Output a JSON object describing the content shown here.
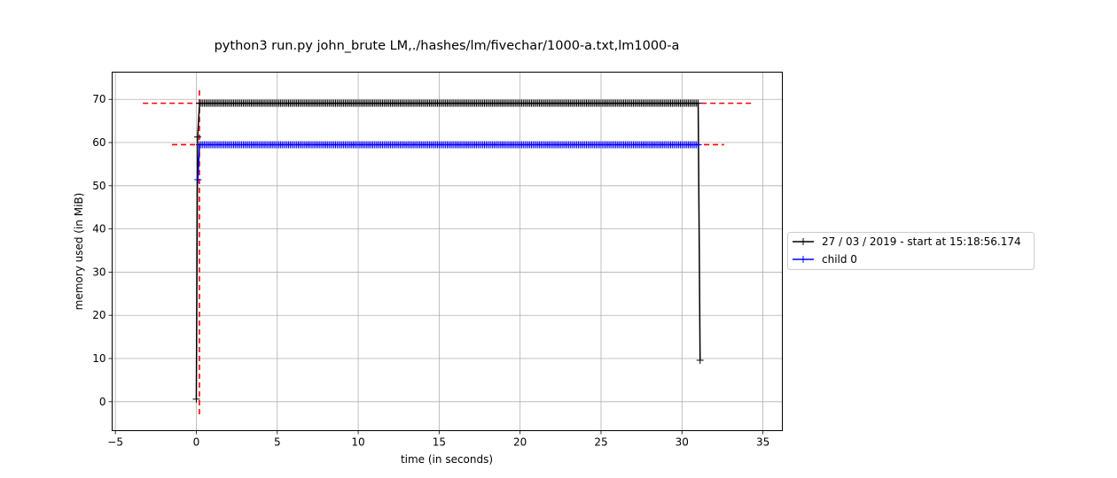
{
  "chart_data": {
    "type": "line",
    "title": "python3 run.py john_brute LM,./hashes/lm/fivechar/1000-a.txt,lm1000-a",
    "xlabel": "time (in seconds)",
    "ylabel": "memory used (in MiB)",
    "xlim": [
      -5.2,
      36.2
    ],
    "ylim": [
      -6.7,
      76.3
    ],
    "xticks": [
      -5,
      0,
      5,
      10,
      15,
      20,
      25,
      30,
      35
    ],
    "yticks": [
      0,
      10,
      20,
      30,
      40,
      50,
      60,
      70
    ],
    "grid": true,
    "legend_position": "right-outside",
    "series": [
      {
        "name": "27 / 03 / 2019 - start at 15:18:56.174",
        "color": "#000000",
        "marker": "+",
        "start": [
          [
            0.0,
            0.6
          ],
          [
            0.08,
            61.3
          ]
        ],
        "plateau": {
          "x_from": 0.2,
          "x_to": 31.0,
          "step": 0.1,
          "y": 69.1
        },
        "end": [
          [
            31.12,
            9.6
          ]
        ],
        "max_line": {
          "y": 69.1,
          "x_from": -3.3,
          "x_to": 34.4
        }
      },
      {
        "name": "child 0",
        "color": "#0000ff",
        "marker": "+",
        "start": [
          [
            0.1,
            51.4
          ]
        ],
        "plateau": {
          "x_from": 0.2,
          "x_to": 31.0,
          "step": 0.1,
          "y": 59.5
        },
        "end": [],
        "max_line": {
          "y": 59.5,
          "x_from": -1.5,
          "x_to": 32.6
        }
      }
    ],
    "vertical_marker": {
      "x": 0.19,
      "y_from": -2.9,
      "y_to": 72.9,
      "color": "#ff0000"
    }
  }
}
